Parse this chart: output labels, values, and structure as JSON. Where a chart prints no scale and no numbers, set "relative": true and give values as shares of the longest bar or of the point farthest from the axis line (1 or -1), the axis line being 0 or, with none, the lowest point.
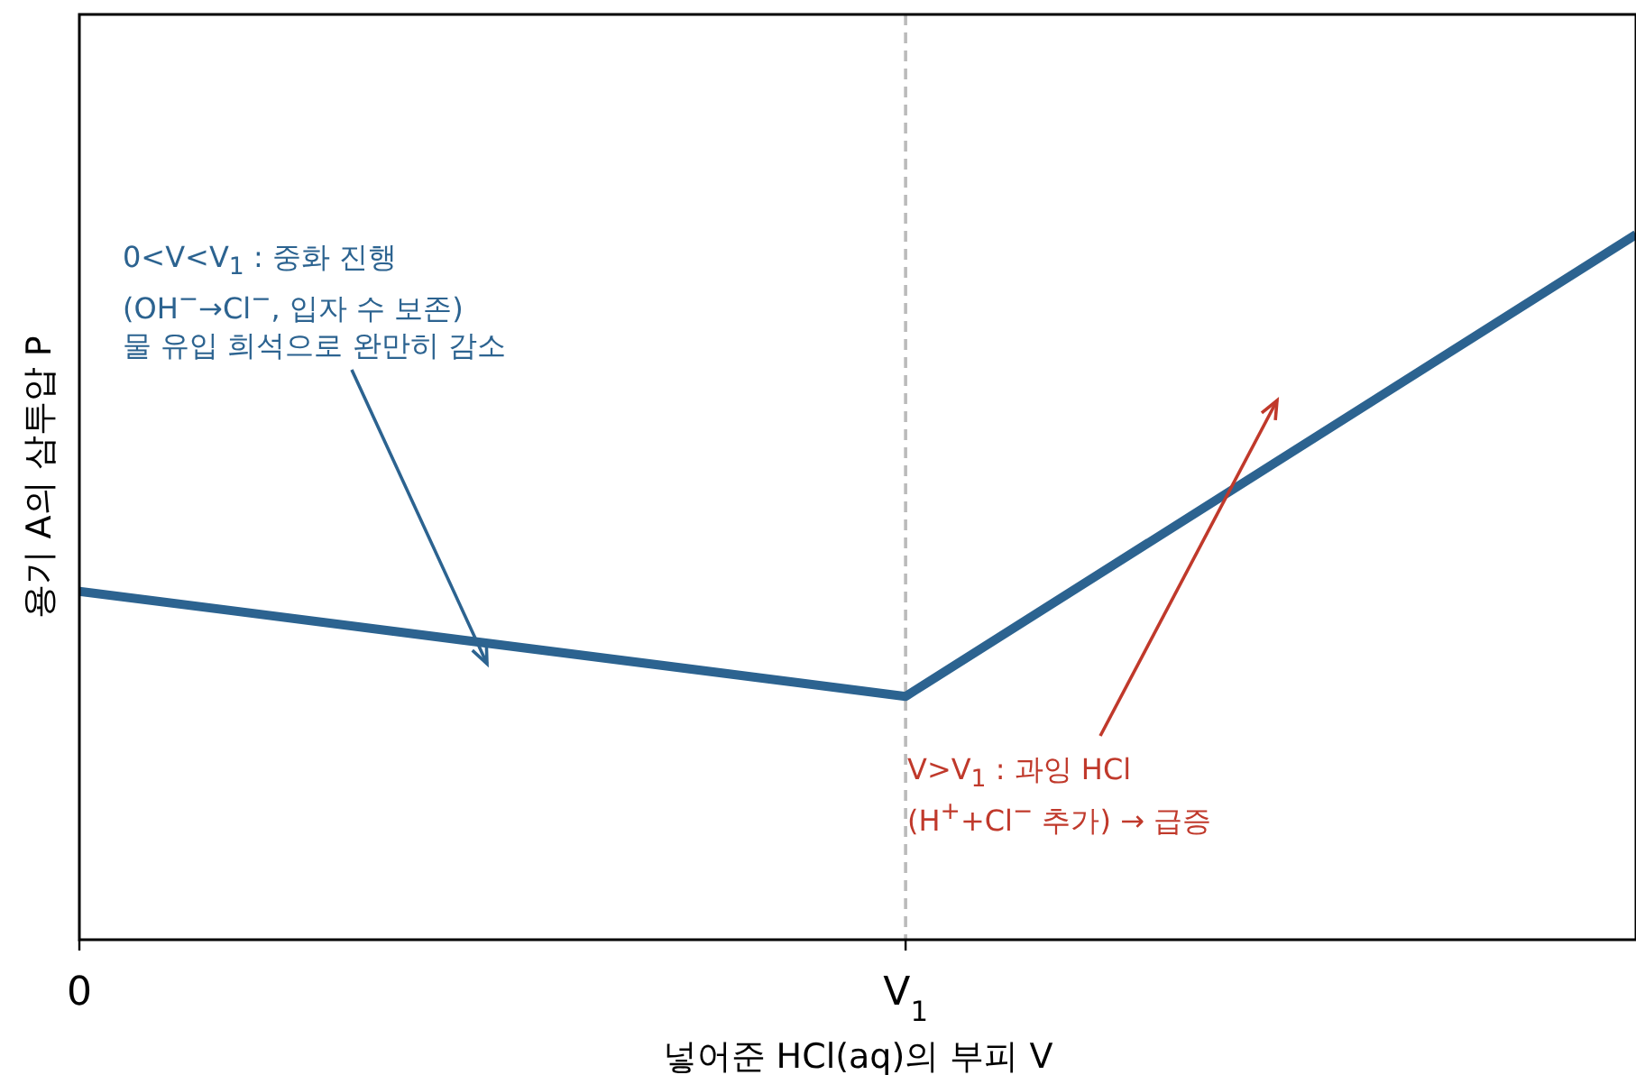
{
  "chart_data": {
    "type": "line",
    "relative": true,
    "xlabel": "넣어준 HCl(aq)의 부피  V",
    "ylabel": "용기 A의 삼투압  P",
    "x": [
      0,
      1,
      1.884
    ],
    "xlim": [
      0,
      1.884
    ],
    "xticks": [
      {
        "value": 0,
        "label": "0"
      },
      {
        "value": 1,
        "label": "V$_{1}$"
      }
    ],
    "series": [
      {
        "color": "#2c6390",
        "values": [
          0.494,
          0.345,
          1
        ]
      }
    ],
    "marker": "none",
    "line_style": "solid",
    "grid": false,
    "ref_lines": [
      {
        "axis": "x",
        "value": 1,
        "color": "#bbbbbb",
        "line_style": "dashed"
      }
    ],
    "annotations": [
      "0<V<V$_{1}$ : 중화 진행\n(OH$^{−}$→Cl$^{−}$, 입자 수 보존)\n물 유입 희석으로 완만히 감소",
      "V>V$_{1}$ : 과잉 HCl\n(H$^{+}$+Cl$^{−}$ 추가) → 급증"
    ]
  }
}
